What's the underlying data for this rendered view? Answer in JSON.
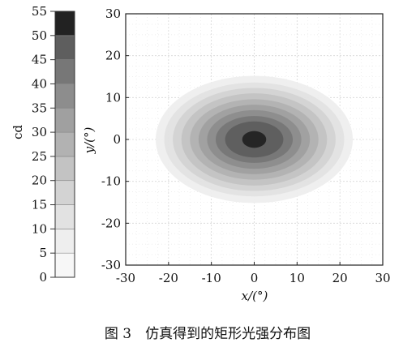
{
  "chart_data": [
    {
      "type": "heatmap",
      "role": "colorbar",
      "unit_label": "cd",
      "levels": [
        0,
        5,
        10,
        15,
        20,
        25,
        30,
        35,
        40,
        45,
        50,
        55
      ],
      "tick_labels": [
        "0",
        "5",
        "10",
        "15",
        "20",
        "25",
        "30",
        "35",
        "40",
        "45",
        "50",
        "55"
      ],
      "range": [
        0,
        55
      ],
      "colors": [
        "#f7f7f7",
        "#eeeeee",
        "#e2e2e2",
        "#d3d3d3",
        "#c3c3c3",
        "#b2b2b2",
        "#a0a0a0",
        "#8d8d8d",
        "#777777",
        "#5e5e5e",
        "#222222"
      ]
    },
    {
      "type": "heatmap",
      "role": "contour-plot",
      "xlabel": "x/(°)",
      "ylabel": "y/(°)",
      "xlim": [
        -30,
        30
      ],
      "ylim": [
        -30,
        30
      ],
      "x_ticks": [
        -30,
        -20,
        -10,
        0,
        10,
        20,
        30
      ],
      "y_ticks": [
        -30,
        -20,
        -10,
        0,
        10,
        20,
        30
      ],
      "x_tick_labels": [
        "-30",
        "-20",
        "-10",
        "0",
        "10",
        "20",
        "30"
      ],
      "y_tick_labels": [
        "-30",
        "-20",
        "-10",
        "0",
        "10",
        "20",
        "30"
      ],
      "grid": true,
      "peak_center": [
        0,
        0
      ],
      "contours": [
        {
          "level": 5,
          "x_halfwidth": 23.0,
          "y_halfwidth": 15.2
        },
        {
          "level": 10,
          "x_halfwidth": 21.0,
          "y_halfwidth": 13.6
        },
        {
          "level": 15,
          "x_halfwidth": 19.0,
          "y_halfwidth": 12.3
        },
        {
          "level": 20,
          "x_halfwidth": 17.0,
          "y_halfwidth": 11.0
        },
        {
          "level": 25,
          "x_halfwidth": 15.0,
          "y_halfwidth": 9.6
        },
        {
          "level": 30,
          "x_halfwidth": 13.0,
          "y_halfwidth": 8.3
        },
        {
          "level": 35,
          "x_halfwidth": 11.0,
          "y_halfwidth": 7.0
        },
        {
          "level": 40,
          "x_halfwidth": 9.0,
          "y_halfwidth": 5.6
        },
        {
          "level": 45,
          "x_halfwidth": 6.8,
          "y_halfwidth": 4.3
        },
        {
          "level": 50,
          "x_halfwidth": 2.8,
          "y_halfwidth": 2.0
        }
      ]
    }
  ],
  "caption": "图 3　仿真得到的矩形光强分布图"
}
